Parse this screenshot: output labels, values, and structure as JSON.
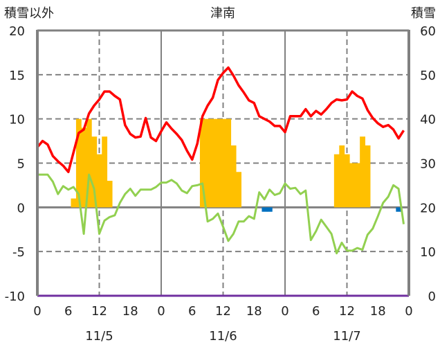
{
  "chart_data": {
    "type": "bar+line",
    "title": "津南",
    "left_axis_label": "積雪以外",
    "right_axis_label": "積雪",
    "left_ylim": [
      -10,
      20
    ],
    "left_ticks": [
      "20",
      "15",
      "10",
      "5",
      "0",
      "-5",
      "-10"
    ],
    "right_ylim": [
      0,
      60
    ],
    "right_ticks": [
      "60",
      "50",
      "40",
      "30",
      "20",
      "10",
      "0"
    ],
    "x_range_hours": [
      0,
      72
    ],
    "x_tick_labels": [
      "0",
      "6",
      "12",
      "18",
      "0",
      "6",
      "12",
      "18",
      "0",
      "6",
      "12",
      "18",
      "0"
    ],
    "date_labels": [
      "11/5",
      "11/6",
      "11/7"
    ],
    "grid": "dashed horizontal at 5/10/15, dashed vertical at 12h",
    "colors": {
      "red": "#ff0000",
      "green": "#92d050",
      "orange": "#ffc000",
      "blue": "#0070c0",
      "purple": "#7030a0",
      "axis": "#808080"
    },
    "series": [
      {
        "name": "orange-bars",
        "type": "bar",
        "axis": "left",
        "hours": [
          7,
          8,
          9,
          10,
          11,
          12,
          13,
          14,
          32,
          33,
          34,
          35,
          36,
          37,
          38,
          39,
          58,
          59,
          60,
          61,
          62,
          63,
          64
        ],
        "values": [
          1,
          10,
          9,
          10,
          8,
          6,
          8,
          3,
          10,
          10,
          10,
          10,
          10,
          10,
          7,
          4,
          6,
          7,
          6,
          5,
          5,
          8,
          7
        ]
      },
      {
        "name": "blue-bars",
        "type": "bar",
        "axis": "left",
        "hours": [
          44,
          45,
          70
        ],
        "values": [
          -0.5,
          -0.5,
          -0.5
        ]
      },
      {
        "name": "red-line",
        "type": "line",
        "axis": "left",
        "values": [
          6.8,
          7.5,
          7.1,
          5.8,
          5.2,
          4.7,
          4.0,
          6.2,
          8.4,
          8.8,
          10.6,
          11.5,
          12.2,
          13.1,
          13.1,
          12.6,
          12.2,
          9.3,
          8.3,
          7.9,
          8.0,
          10.1,
          7.9,
          7.5,
          8.6,
          9.6,
          8.9,
          8.3,
          7.6,
          6.4,
          5.4,
          7.2,
          10.3,
          11.5,
          12.4,
          14.4,
          15.2,
          15.8,
          14.9,
          13.8,
          13.0,
          12.1,
          11.8,
          10.3,
          10.0,
          9.7,
          9.2,
          9.2,
          8.5,
          10.3,
          10.3,
          10.3,
          11.1,
          10.3,
          10.9,
          10.5,
          11.1,
          11.8,
          12.2,
          12.1,
          12.2,
          13.1,
          12.6,
          12.3,
          11.0,
          10.1,
          9.5,
          9.1,
          9.3,
          8.8,
          7.8,
          8.7
        ]
      },
      {
        "name": "green-line",
        "type": "line",
        "axis": "left",
        "values": [
          3.7,
          3.7,
          3.7,
          2.9,
          1.5,
          2.4,
          2.0,
          2.3,
          1.5,
          -3.0,
          3.7,
          2.1,
          -3.0,
          -1.5,
          -1.1,
          -0.9,
          0.5,
          1.5,
          2.1,
          1.3,
          2.0,
          2.0,
          2.0,
          2.3,
          2.8,
          2.8,
          3.1,
          2.7,
          1.9,
          1.6,
          2.4,
          2.5,
          2.7,
          -1.6,
          -1.3,
          -0.7,
          -2.2,
          -3.8,
          -3.0,
          -1.6,
          -1.6,
          -1.0,
          -1.3,
          1.7,
          0.9,
          2.0,
          1.4,
          1.6,
          2.7,
          2.1,
          2.2,
          1.5,
          1.9,
          -3.7,
          -2.7,
          -1.4,
          -2.2,
          -3.0,
          -5.2,
          -4.0,
          -4.9,
          -4.9,
          -4.6,
          -4.8,
          -3.1,
          -2.4,
          -1.0,
          0.5,
          1.2,
          2.5,
          2.1,
          -1.9
        ]
      },
      {
        "name": "purple-line",
        "type": "line",
        "axis": "right",
        "note": "snow depth",
        "constant_value": 0
      }
    ]
  }
}
